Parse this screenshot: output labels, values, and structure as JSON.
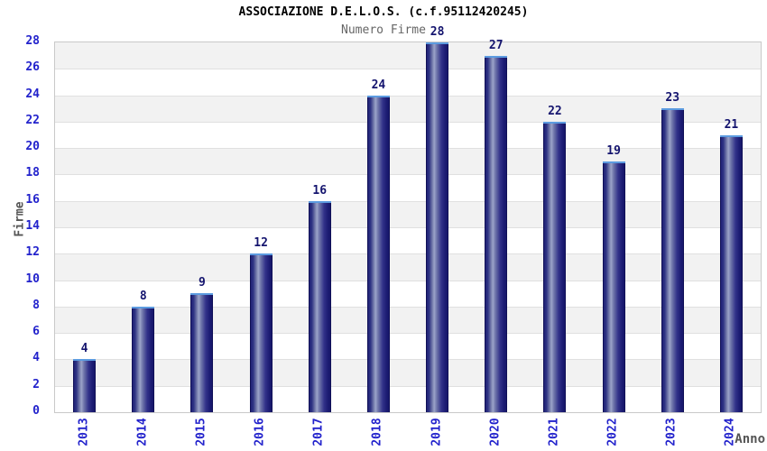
{
  "chart_data": {
    "type": "bar",
    "title": "ASSOCIAZIONE D.E.L.O.S. (c.f.95112420245)",
    "subtitle": "Numero Firme",
    "xlabel": "Anno",
    "ylabel": "Firme",
    "categories": [
      "2013",
      "2014",
      "2015",
      "2016",
      "2017",
      "2018",
      "2019",
      "2020",
      "2021",
      "2022",
      "2023",
      "2024"
    ],
    "values": [
      4,
      8,
      9,
      12,
      16,
      24,
      28,
      27,
      22,
      19,
      23,
      21
    ],
    "ylim": [
      0,
      28
    ],
    "ytick_step": 2,
    "legend": "none",
    "grid": "horizontal-bands-alternating",
    "colors": {
      "bar_edge": "#1a1a72",
      "bar_highlight": "#9ba3c9",
      "bar_cap": "#5c9be0",
      "tick_label": "#2222cc",
      "value_label": "#14146e",
      "band_gray": "#f2f2f2",
      "band_white": "#ffffff",
      "gridline": "#e0e0e0",
      "plot_border": "#c9c9c9",
      "title_color": "#000000",
      "subtitle_color": "#666666",
      "axis_title_color": "#555555"
    }
  }
}
